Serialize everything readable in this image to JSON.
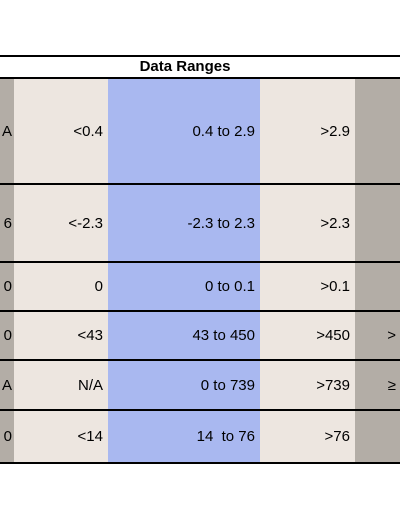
{
  "table": {
    "title": "Data Ranges",
    "rows": [
      {
        "left": "A",
        "low": "<0.4",
        "mid": "0.4 to 2.9",
        "high": ">2.9"
      },
      {
        "left": "6",
        "low": "<-2.3",
        "mid": "-2.3 to 2.3",
        "high": ">2.3"
      },
      {
        "left": "0",
        "low": "0",
        "mid": "0 to 0.1",
        "high": ">0.1"
      },
      {
        "left": "0",
        "low": "<43",
        "mid": "43 to 450",
        "high": ">450",
        "right": ">"
      },
      {
        "left": "A",
        "low": "N/A",
        "mid": "0 to 739",
        "high": ">739",
        "right": "≥"
      },
      {
        "left": "0",
        "low": "<14",
        "mid": "14  to 76",
        "high": ">76"
      }
    ]
  }
}
